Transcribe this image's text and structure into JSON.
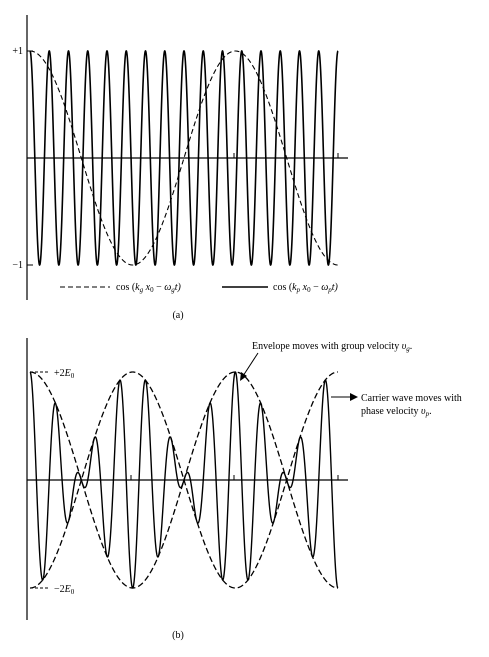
{
  "chart_data": [
    {
      "type": "line",
      "panel_label": "(a)",
      "ylim": [
        -1,
        1
      ],
      "y_ticks": [
        {
          "value": 1,
          "label": "+1"
        },
        {
          "value": -1,
          "label": "−1"
        }
      ],
      "series": [
        {
          "id": "envelope",
          "style": "dashed",
          "expr": "cos(x)",
          "cycles_shown": 1.5,
          "legend": {
            "prefix": "cos (",
            "k": "k",
            "k_sub": "g",
            "x0": "x",
            "x0_sub": "0",
            "minus": " − ",
            "w": "ω",
            "w_sub": "g",
            "t": "t)"
          }
        },
        {
          "id": "carrier",
          "style": "solid",
          "expr": "cos(x)",
          "cycles_shown": 16,
          "legend": {
            "prefix": "cos (",
            "k": "k",
            "k_sub": "p",
            "x0": "x",
            "x0_sub": "0",
            "minus": " − ",
            "w": "ω",
            "w_sub": "p",
            "t": "t)"
          }
        }
      ]
    },
    {
      "type": "line",
      "panel_label": "(b)",
      "ylim": [
        -2,
        2
      ],
      "y_ticks": [
        {
          "value": 2,
          "label_prefix": "+2",
          "label_var": "E",
          "label_sub": "0"
        },
        {
          "value": -2,
          "label_prefix": "−2",
          "label_var": "E",
          "label_sub": "0"
        }
      ],
      "series": [
        {
          "id": "envelope",
          "style": "dashed",
          "expr": "±2cos(x)",
          "envelope_cycles": 1.5
        },
        {
          "id": "modulated_wave",
          "style": "solid",
          "expr": "2cos(x)cos(y)",
          "carrier_cycles": 12
        }
      ],
      "annotations": [
        {
          "id": "group",
          "text_prefix": "Envelope moves with group velocity ",
          "var": "υ",
          "var_sub": "g",
          "suffix": "."
        },
        {
          "id": "phase_line1",
          "text": "Carrier wave moves with"
        },
        {
          "id": "phase_line2",
          "text_prefix": "phase velocity ",
          "var": "υ",
          "var_sub": "p",
          "suffix": "."
        }
      ]
    }
  ]
}
